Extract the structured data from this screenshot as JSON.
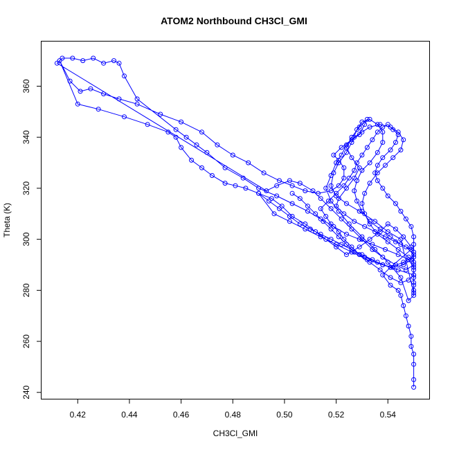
{
  "chart_data": {
    "type": "scatter",
    "title": "ATOM2 Northbound CH3Cl_GMI",
    "xlabel": "CH3Cl_GMI",
    "ylabel": "Theta (K)",
    "xlim": [
      0.406,
      0.556
    ],
    "ylim": [
      237.5,
      377.5
    ],
    "x_ticks": [
      0.42,
      0.44,
      0.46,
      0.48,
      0.5,
      0.52,
      0.54
    ],
    "x_tick_labels": [
      "0.42",
      "0.44",
      "0.46",
      "0.48",
      "0.50",
      "0.52",
      "0.54"
    ],
    "y_ticks": [
      240,
      260,
      280,
      300,
      320,
      340,
      360
    ],
    "y_tick_labels": [
      "240",
      "260",
      "280",
      "300",
      "320",
      "340",
      "360"
    ],
    "grid": false,
    "marker": "open-circle",
    "connected": true,
    "series": [
      {
        "color": "#0000ff",
        "points": [
          [
            0.55,
            242
          ],
          [
            0.55,
            245
          ],
          [
            0.55,
            251
          ],
          [
            0.55,
            255
          ],
          [
            0.549,
            258
          ],
          [
            0.549,
            262
          ],
          [
            0.548,
            266
          ],
          [
            0.547,
            270
          ],
          [
            0.546,
            274
          ],
          [
            0.545,
            278
          ],
          [
            0.544,
            280
          ],
          [
            0.541,
            282
          ],
          [
            0.538,
            286
          ],
          [
            0.541,
            289
          ],
          [
            0.546,
            291
          ],
          [
            0.55,
            293
          ],
          [
            0.549,
            297
          ],
          [
            0.546,
            301
          ],
          [
            0.543,
            304
          ],
          [
            0.54,
            306
          ],
          [
            0.537,
            303
          ],
          [
            0.533,
            300
          ],
          [
            0.529,
            297
          ],
          [
            0.524,
            294
          ],
          [
            0.52,
            297
          ],
          [
            0.516,
            300
          ],
          [
            0.512,
            303
          ],
          [
            0.508,
            306
          ],
          [
            0.503,
            309
          ],
          [
            0.499,
            313
          ],
          [
            0.495,
            316
          ],
          [
            0.49,
            318
          ],
          [
            0.485,
            320
          ],
          [
            0.481,
            321
          ],
          [
            0.477,
            322
          ],
          [
            0.472,
            325
          ],
          [
            0.468,
            328
          ],
          [
            0.464,
            331
          ],
          [
            0.46,
            336
          ],
          [
            0.458,
            340
          ],
          [
            0.455,
            342
          ],
          [
            0.447,
            345
          ],
          [
            0.438,
            348
          ],
          [
            0.428,
            351
          ],
          [
            0.42,
            353
          ],
          [
            0.413,
            370
          ],
          [
            0.417,
            362
          ],
          [
            0.421,
            358
          ],
          [
            0.425,
            359
          ],
          [
            0.43,
            357
          ],
          [
            0.436,
            355
          ],
          [
            0.443,
            353
          ],
          [
            0.452,
            349
          ],
          [
            0.46,
            346
          ],
          [
            0.468,
            342
          ],
          [
            0.474,
            337
          ],
          [
            0.48,
            333
          ],
          [
            0.486,
            330
          ],
          [
            0.492,
            326
          ],
          [
            0.498,
            323
          ],
          [
            0.503,
            321
          ],
          [
            0.508,
            319
          ],
          [
            0.513,
            318
          ],
          [
            0.518,
            319
          ],
          [
            0.521,
            321
          ],
          [
            0.523,
            324
          ],
          [
            0.523,
            328
          ],
          [
            0.521,
            331
          ],
          [
            0.519,
            333
          ],
          [
            0.522,
            336
          ],
          [
            0.526,
            339
          ],
          [
            0.529,
            341
          ],
          [
            0.531,
            345
          ],
          [
            0.532,
            347
          ],
          [
            0.529,
            344
          ],
          [
            0.526,
            340
          ],
          [
            0.524,
            336
          ],
          [
            0.526,
            332
          ],
          [
            0.529,
            328
          ],
          [
            0.527,
            324
          ],
          [
            0.524,
            320
          ],
          [
            0.521,
            316
          ],
          [
            0.52,
            313
          ],
          [
            0.523,
            310
          ],
          [
            0.527,
            307
          ],
          [
            0.531,
            305
          ],
          [
            0.535,
            303
          ],
          [
            0.539,
            301
          ],
          [
            0.543,
            299
          ],
          [
            0.547,
            297
          ],
          [
            0.55,
            294
          ],
          [
            0.55,
            290
          ],
          [
            0.547,
            288
          ],
          [
            0.543,
            290
          ],
          [
            0.538,
            293
          ],
          [
            0.534,
            296
          ],
          [
            0.53,
            300
          ],
          [
            0.526,
            304
          ],
          [
            0.522,
            308
          ],
          [
            0.518,
            312
          ],
          [
            0.514,
            316
          ],
          [
            0.511,
            319
          ],
          [
            0.506,
            322
          ],
          [
            0.502,
            323
          ],
          [
            0.497,
            321
          ],
          [
            0.493,
            319
          ],
          [
            0.412,
            369
          ],
          [
            0.414,
            371
          ],
          [
            0.418,
            371
          ],
          [
            0.422,
            370
          ],
          [
            0.426,
            371
          ],
          [
            0.43,
            369
          ],
          [
            0.434,
            370
          ],
          [
            0.436,
            369
          ],
          [
            0.438,
            364
          ],
          [
            0.443,
            355
          ],
          [
            0.458,
            343
          ],
          [
            0.462,
            340
          ],
          [
            0.466,
            337
          ],
          [
            0.47,
            334
          ],
          [
            0.477,
            328
          ],
          [
            0.484,
            324
          ],
          [
            0.49,
            320
          ],
          [
            0.497,
            317
          ],
          [
            0.503,
            314
          ],
          [
            0.509,
            311
          ],
          [
            0.514,
            308
          ],
          [
            0.519,
            305
          ],
          [
            0.524,
            302
          ],
          [
            0.529,
            300
          ],
          [
            0.534,
            298
          ],
          [
            0.539,
            296
          ],
          [
            0.544,
            294
          ],
          [
            0.548,
            292
          ],
          [
            0.55,
            289
          ],
          [
            0.55,
            286
          ],
          [
            0.548,
            284
          ],
          [
            0.545,
            283
          ],
          [
            0.541,
            285
          ],
          [
            0.537,
            288
          ],
          [
            0.533,
            291
          ],
          [
            0.529,
            294
          ],
          [
            0.526,
            297
          ],
          [
            0.523,
            300
          ],
          [
            0.521,
            303
          ],
          [
            0.518,
            306
          ],
          [
            0.516,
            309
          ],
          [
            0.514,
            312
          ],
          [
            0.517,
            315
          ],
          [
            0.52,
            318
          ],
          [
            0.523,
            321
          ],
          [
            0.525,
            324
          ],
          [
            0.527,
            327
          ],
          [
            0.528,
            330
          ],
          [
            0.53,
            333
          ],
          [
            0.532,
            336
          ],
          [
            0.534,
            339
          ],
          [
            0.536,
            342
          ],
          [
            0.538,
            344
          ],
          [
            0.54,
            345
          ],
          [
            0.542,
            343
          ],
          [
            0.544,
            341
          ],
          [
            0.543,
            338
          ],
          [
            0.541,
            335
          ],
          [
            0.538,
            332
          ],
          [
            0.536,
            329
          ],
          [
            0.535,
            326
          ],
          [
            0.536,
            323
          ],
          [
            0.538,
            320
          ],
          [
            0.54,
            317
          ],
          [
            0.543,
            314
          ],
          [
            0.545,
            311
          ],
          [
            0.547,
            308
          ],
          [
            0.549,
            305
          ],
          [
            0.55,
            301
          ],
          [
            0.55,
            298
          ],
          [
            0.55,
            295
          ],
          [
            0.549,
            292
          ],
          [
            0.546,
            290
          ],
          [
            0.542,
            289
          ],
          [
            0.538,
            290
          ],
          [
            0.534,
            292
          ],
          [
            0.53,
            294
          ],
          [
            0.526,
            296
          ],
          [
            0.522,
            298
          ],
          [
            0.518,
            300
          ],
          [
            0.514,
            302
          ],
          [
            0.51,
            304
          ],
          [
            0.506,
            306
          ],
          [
            0.502,
            309
          ],
          [
            0.498,
            312
          ],
          [
            0.494,
            315
          ],
          [
            0.49,
            318
          ],
          [
            0.496,
            310
          ],
          [
            0.502,
            307
          ],
          [
            0.508,
            304
          ],
          [
            0.514,
            301
          ],
          [
            0.52,
            298
          ],
          [
            0.526,
            295
          ],
          [
            0.532,
            292
          ],
          [
            0.538,
            290
          ],
          [
            0.544,
            288
          ],
          [
            0.55,
            286
          ],
          [
            0.55,
            283
          ],
          [
            0.55,
            280
          ],
          [
            0.55,
            278
          ],
          [
            0.548,
            276
          ],
          [
            0.545,
            285
          ],
          [
            0.54,
            291
          ],
          [
            0.535,
            296
          ],
          [
            0.53,
            301
          ],
          [
            0.525,
            306
          ],
          [
            0.521,
            311
          ],
          [
            0.518,
            315
          ],
          [
            0.516,
            320
          ],
          [
            0.518,
            325
          ],
          [
            0.52,
            330
          ],
          [
            0.522,
            333
          ],
          [
            0.524,
            337
          ],
          [
            0.527,
            340
          ],
          [
            0.53,
            342
          ],
          [
            0.533,
            344
          ],
          [
            0.537,
            345
          ],
          [
            0.541,
            344
          ],
          [
            0.544,
            342
          ],
          [
            0.546,
            339
          ],
          [
            0.545,
            335
          ],
          [
            0.542,
            332
          ],
          [
            0.539,
            329
          ],
          [
            0.536,
            326
          ],
          [
            0.533,
            322
          ],
          [
            0.531,
            318
          ],
          [
            0.53,
            314
          ],
          [
            0.531,
            310
          ],
          [
            0.533,
            306
          ],
          [
            0.536,
            302
          ],
          [
            0.54,
            299
          ],
          [
            0.544,
            296
          ],
          [
            0.548,
            293
          ],
          [
            0.55,
            291
          ],
          [
            0.55,
            288
          ],
          [
            0.55,
            285
          ],
          [
            0.55,
            282
          ],
          [
            0.55,
            279
          ],
          [
            0.545,
            300
          ],
          [
            0.54,
            303
          ],
          [
            0.535,
            307
          ],
          [
            0.529,
            311
          ],
          [
            0.524,
            314
          ],
          [
            0.52,
            317
          ],
          [
            0.518,
            321
          ],
          [
            0.519,
            326
          ],
          [
            0.521,
            330
          ],
          [
            0.524,
            334
          ],
          [
            0.526,
            338
          ],
          [
            0.528,
            343
          ],
          [
            0.53,
            346
          ],
          [
            0.533,
            347
          ],
          [
            0.536,
            345
          ],
          [
            0.538,
            342
          ],
          [
            0.538,
            338
          ],
          [
            0.536,
            334
          ],
          [
            0.533,
            330
          ],
          [
            0.53,
            327
          ],
          [
            0.528,
            323
          ],
          [
            0.527,
            319
          ],
          [
            0.528,
            315
          ],
          [
            0.53,
            311
          ],
          [
            0.533,
            307
          ],
          [
            0.537,
            304
          ],
          [
            0.541,
            301
          ],
          [
            0.545,
            298
          ],
          [
            0.549,
            296
          ],
          [
            0.541,
            289
          ],
          [
            0.536,
            291
          ],
          [
            0.531,
            293
          ],
          [
            0.527,
            295
          ],
          [
            0.524,
            298
          ],
          [
            0.521,
            301
          ],
          [
            0.518,
            304
          ],
          [
            0.515,
            307
          ],
          [
            0.512,
            310
          ],
          [
            0.509,
            313
          ],
          [
            0.506,
            316
          ],
          [
            0.503,
            318
          ]
        ]
      }
    ]
  }
}
